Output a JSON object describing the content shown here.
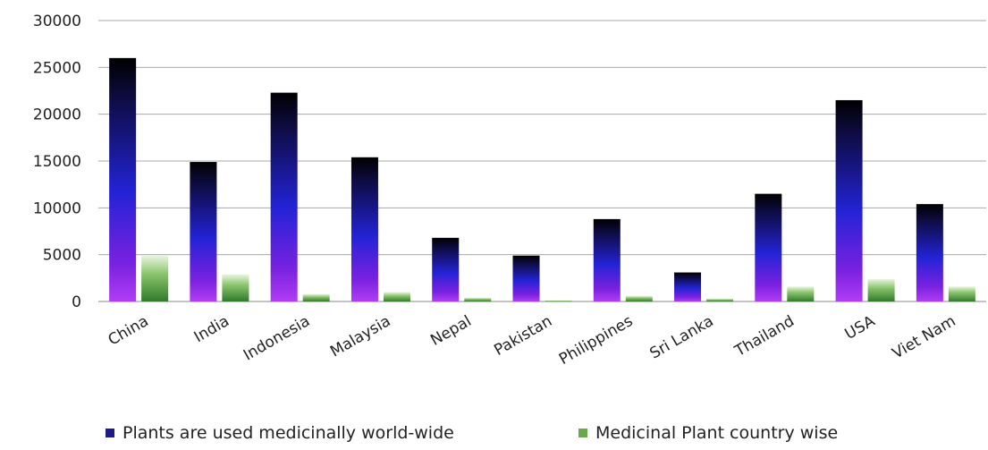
{
  "chart_data": {
    "type": "bar",
    "categories": [
      "China",
      "India",
      "Indonesia",
      "Malaysia",
      "Nepal",
      "Pakistan",
      "Philippines",
      "Sri Lanka",
      "Thailand",
      "USA",
      "Viet Nam"
    ],
    "series": [
      {
        "name": "Plants are used medicinally world-wide",
        "values": [
          26000,
          14900,
          22300,
          15400,
          6800,
          4900,
          8800,
          3100,
          11500,
          21500,
          10400
        ],
        "color": "#1f1a8a"
      },
      {
        "name": "Medicinal Plant country wise",
        "values": [
          4900,
          2900,
          800,
          1000,
          400,
          100,
          600,
          300,
          1600,
          2400,
          1600
        ],
        "color": "#6aa84f"
      }
    ],
    "y_ticks": [
      "0",
      "5000",
      "10000",
      "15000",
      "20000",
      "25000",
      "30000"
    ],
    "ylim": [
      0,
      30000
    ],
    "grid": true,
    "legend_position": "bottom"
  }
}
